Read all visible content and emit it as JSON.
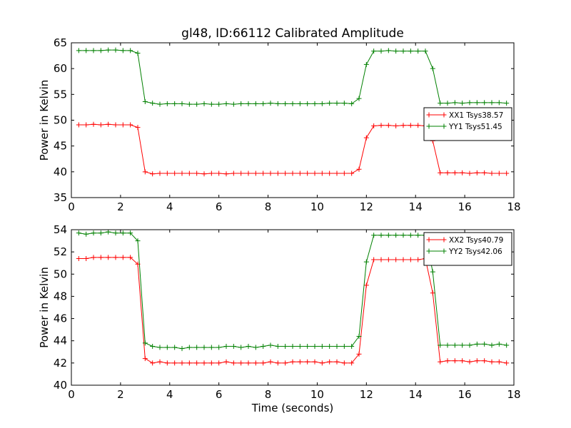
{
  "chart_data": [
    {
      "type": "line",
      "title": "gl48, ID:66112 Calibrated Amplitude",
      "xlabel": "",
      "ylabel": "Power in Kelvin",
      "xlim": [
        0,
        18
      ],
      "ylim": [
        35,
        65
      ],
      "xticks": [
        "0",
        "2",
        "4",
        "6",
        "8",
        "10",
        "12",
        "14",
        "16",
        "18"
      ],
      "yticks": [
        "35",
        "40",
        "45",
        "50",
        "55",
        "60",
        "65"
      ],
      "legend_position": "right",
      "x": [
        0.3,
        0.6,
        0.9,
        1.2,
        1.5,
        1.8,
        2.1,
        2.4,
        2.7,
        3.0,
        3.3,
        3.6,
        3.9,
        4.2,
        4.5,
        4.8,
        5.1,
        5.4,
        5.7,
        6.0,
        6.3,
        6.6,
        6.9,
        7.2,
        7.5,
        7.8,
        8.1,
        8.4,
        8.7,
        9.0,
        9.3,
        9.6,
        9.9,
        10.2,
        10.5,
        10.8,
        11.1,
        11.4,
        11.7,
        12.0,
        12.3,
        12.6,
        12.9,
        13.2,
        13.5,
        13.8,
        14.1,
        14.4,
        14.7,
        15.0,
        15.3,
        15.6,
        15.9,
        16.2,
        16.5,
        16.8,
        17.1,
        17.4,
        17.7
      ],
      "series": [
        {
          "name": "XX1 Tsys38.57",
          "color": "#ff0000",
          "values": [
            49.1,
            49.1,
            49.2,
            49.1,
            49.2,
            49.1,
            49.1,
            49.1,
            48.6,
            40.0,
            39.6,
            39.7,
            39.7,
            39.7,
            39.7,
            39.7,
            39.7,
            39.6,
            39.7,
            39.7,
            39.6,
            39.7,
            39.7,
            39.7,
            39.7,
            39.7,
            39.7,
            39.7,
            39.7,
            39.7,
            39.7,
            39.7,
            39.7,
            39.7,
            39.7,
            39.7,
            39.7,
            39.7,
            40.5,
            46.6,
            48.9,
            49.0,
            49.0,
            48.9,
            49.0,
            49.0,
            49.0,
            48.9,
            46.0,
            39.8,
            39.8,
            39.8,
            39.8,
            39.7,
            39.8,
            39.8,
            39.7,
            39.7,
            39.7
          ]
        },
        {
          "name": "YY1 Tsys51.45",
          "color": "#008000",
          "values": [
            63.5,
            63.5,
            63.5,
            63.5,
            63.6,
            63.6,
            63.5,
            63.5,
            63.0,
            53.6,
            53.3,
            53.1,
            53.2,
            53.2,
            53.2,
            53.1,
            53.1,
            53.2,
            53.1,
            53.1,
            53.2,
            53.1,
            53.2,
            53.2,
            53.2,
            53.2,
            53.3,
            53.2,
            53.2,
            53.2,
            53.2,
            53.2,
            53.2,
            53.2,
            53.3,
            53.3,
            53.3,
            53.2,
            54.2,
            60.8,
            63.4,
            63.4,
            63.5,
            63.4,
            63.4,
            63.4,
            63.4,
            63.4,
            60.0,
            53.3,
            53.3,
            53.4,
            53.3,
            53.4,
            53.4,
            53.4,
            53.4,
            53.4,
            53.3
          ]
        }
      ]
    },
    {
      "type": "line",
      "title": "",
      "xlabel": "Time (seconds)",
      "ylabel": "Power in Kelvin",
      "xlim": [
        0,
        18
      ],
      "ylim": [
        40,
        54
      ],
      "xticks": [
        "0",
        "2",
        "4",
        "6",
        "8",
        "10",
        "12",
        "14",
        "16",
        "18"
      ],
      "yticks": [
        "40",
        "42",
        "44",
        "46",
        "48",
        "50",
        "52",
        "54"
      ],
      "legend_position": "top-right",
      "x": [
        0.3,
        0.6,
        0.9,
        1.2,
        1.5,
        1.8,
        2.1,
        2.4,
        2.7,
        3.0,
        3.3,
        3.6,
        3.9,
        4.2,
        4.5,
        4.8,
        5.1,
        5.4,
        5.7,
        6.0,
        6.3,
        6.6,
        6.9,
        7.2,
        7.5,
        7.8,
        8.1,
        8.4,
        8.7,
        9.0,
        9.3,
        9.6,
        9.9,
        10.2,
        10.5,
        10.8,
        11.1,
        11.4,
        11.7,
        12.0,
        12.3,
        12.6,
        12.9,
        13.2,
        13.5,
        13.8,
        14.1,
        14.4,
        14.7,
        15.0,
        15.3,
        15.6,
        15.9,
        16.2,
        16.5,
        16.8,
        17.1,
        17.4,
        17.7
      ],
      "series": [
        {
          "name": "XX2 Tsys40.79",
          "color": "#ff0000",
          "values": [
            51.4,
            51.4,
            51.5,
            51.5,
            51.5,
            51.5,
            51.5,
            51.5,
            50.9,
            42.4,
            42.0,
            42.1,
            42.0,
            42.0,
            42.0,
            42.0,
            42.0,
            42.0,
            42.0,
            42.0,
            42.1,
            42.0,
            42.0,
            42.0,
            42.0,
            42.0,
            42.1,
            42.0,
            42.0,
            42.1,
            42.1,
            42.1,
            42.1,
            42.0,
            42.1,
            42.1,
            42.0,
            42.0,
            42.8,
            49.0,
            51.3,
            51.3,
            51.3,
            51.3,
            51.3,
            51.3,
            51.3,
            51.4,
            48.3,
            42.1,
            42.2,
            42.2,
            42.2,
            42.1,
            42.2,
            42.2,
            42.1,
            42.1,
            42.0
          ]
        },
        {
          "name": "YY2 Tsys42.06",
          "color": "#008000",
          "values": [
            53.7,
            53.6,
            53.7,
            53.7,
            53.8,
            53.7,
            53.7,
            53.7,
            53.0,
            43.8,
            43.5,
            43.4,
            43.4,
            43.4,
            43.3,
            43.4,
            43.4,
            43.4,
            43.4,
            43.4,
            43.5,
            43.5,
            43.4,
            43.5,
            43.4,
            43.5,
            43.6,
            43.5,
            43.5,
            43.5,
            43.5,
            43.5,
            43.5,
            43.5,
            43.5,
            43.5,
            43.5,
            43.5,
            44.4,
            51.1,
            53.5,
            53.5,
            53.5,
            53.5,
            53.5,
            53.5,
            53.5,
            53.5,
            50.2,
            43.6,
            43.6,
            43.6,
            43.6,
            43.6,
            43.7,
            43.7,
            43.6,
            43.7,
            43.6
          ]
        }
      ]
    }
  ]
}
